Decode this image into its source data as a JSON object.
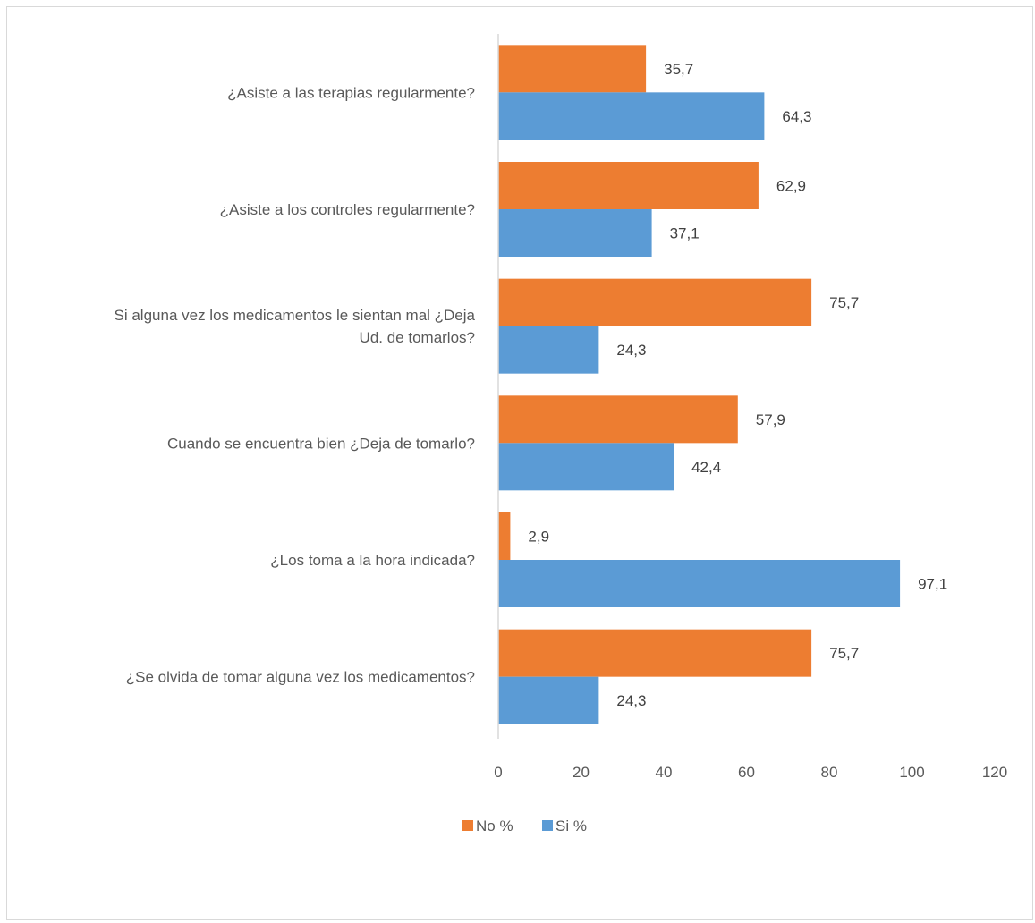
{
  "chart_data": {
    "type": "bar",
    "orientation": "horizontal",
    "categories": [
      "¿Asiste a las terapias regularmente?",
      "¿Asiste a los controles regularmente?",
      "Si alguna vez los medicamentos le sientan mal ¿Deja Ud. de tomarlos?",
      "Cuando se encuentra bien ¿Deja de tomarlo?",
      "¿Los toma a la hora indicada?",
      "¿Se olvida de tomar alguna vez los medicamentos?"
    ],
    "category_lines": [
      [
        "¿Asiste a las terapias regularmente?"
      ],
      [
        "¿Asiste a los controles regularmente?"
      ],
      [
        "Si alguna vez los medicamentos le sientan mal ¿Deja",
        "Ud. de tomarlos?"
      ],
      [
        "Cuando se encuentra bien ¿Deja de tomarlo?"
      ],
      [
        "¿Los toma a la hora indicada?"
      ],
      [
        "¿Se olvida de tomar alguna vez los medicamentos?"
      ]
    ],
    "series": [
      {
        "name": "No %",
        "color": "#ed7d31",
        "values": [
          35.7,
          62.9,
          75.7,
          57.9,
          2.9,
          75.7
        ],
        "labels": [
          "35,7",
          "62,9",
          "75,7",
          "57,9",
          "2,9",
          "75,7"
        ]
      },
      {
        "name": "Si %",
        "color": "#5b9bd5",
        "values": [
          64.3,
          37.1,
          24.3,
          42.4,
          97.1,
          24.3
        ],
        "labels": [
          "64,3",
          "37,1",
          "24,3",
          "42,4",
          "97,1",
          "24,3"
        ]
      }
    ],
    "xlim": [
      0,
      120
    ],
    "xticks": [
      0,
      20,
      40,
      60,
      80,
      100,
      120
    ],
    "xlabel": "",
    "ylabel": "",
    "title": "",
    "grid": false,
    "legend_position": "bottom"
  }
}
